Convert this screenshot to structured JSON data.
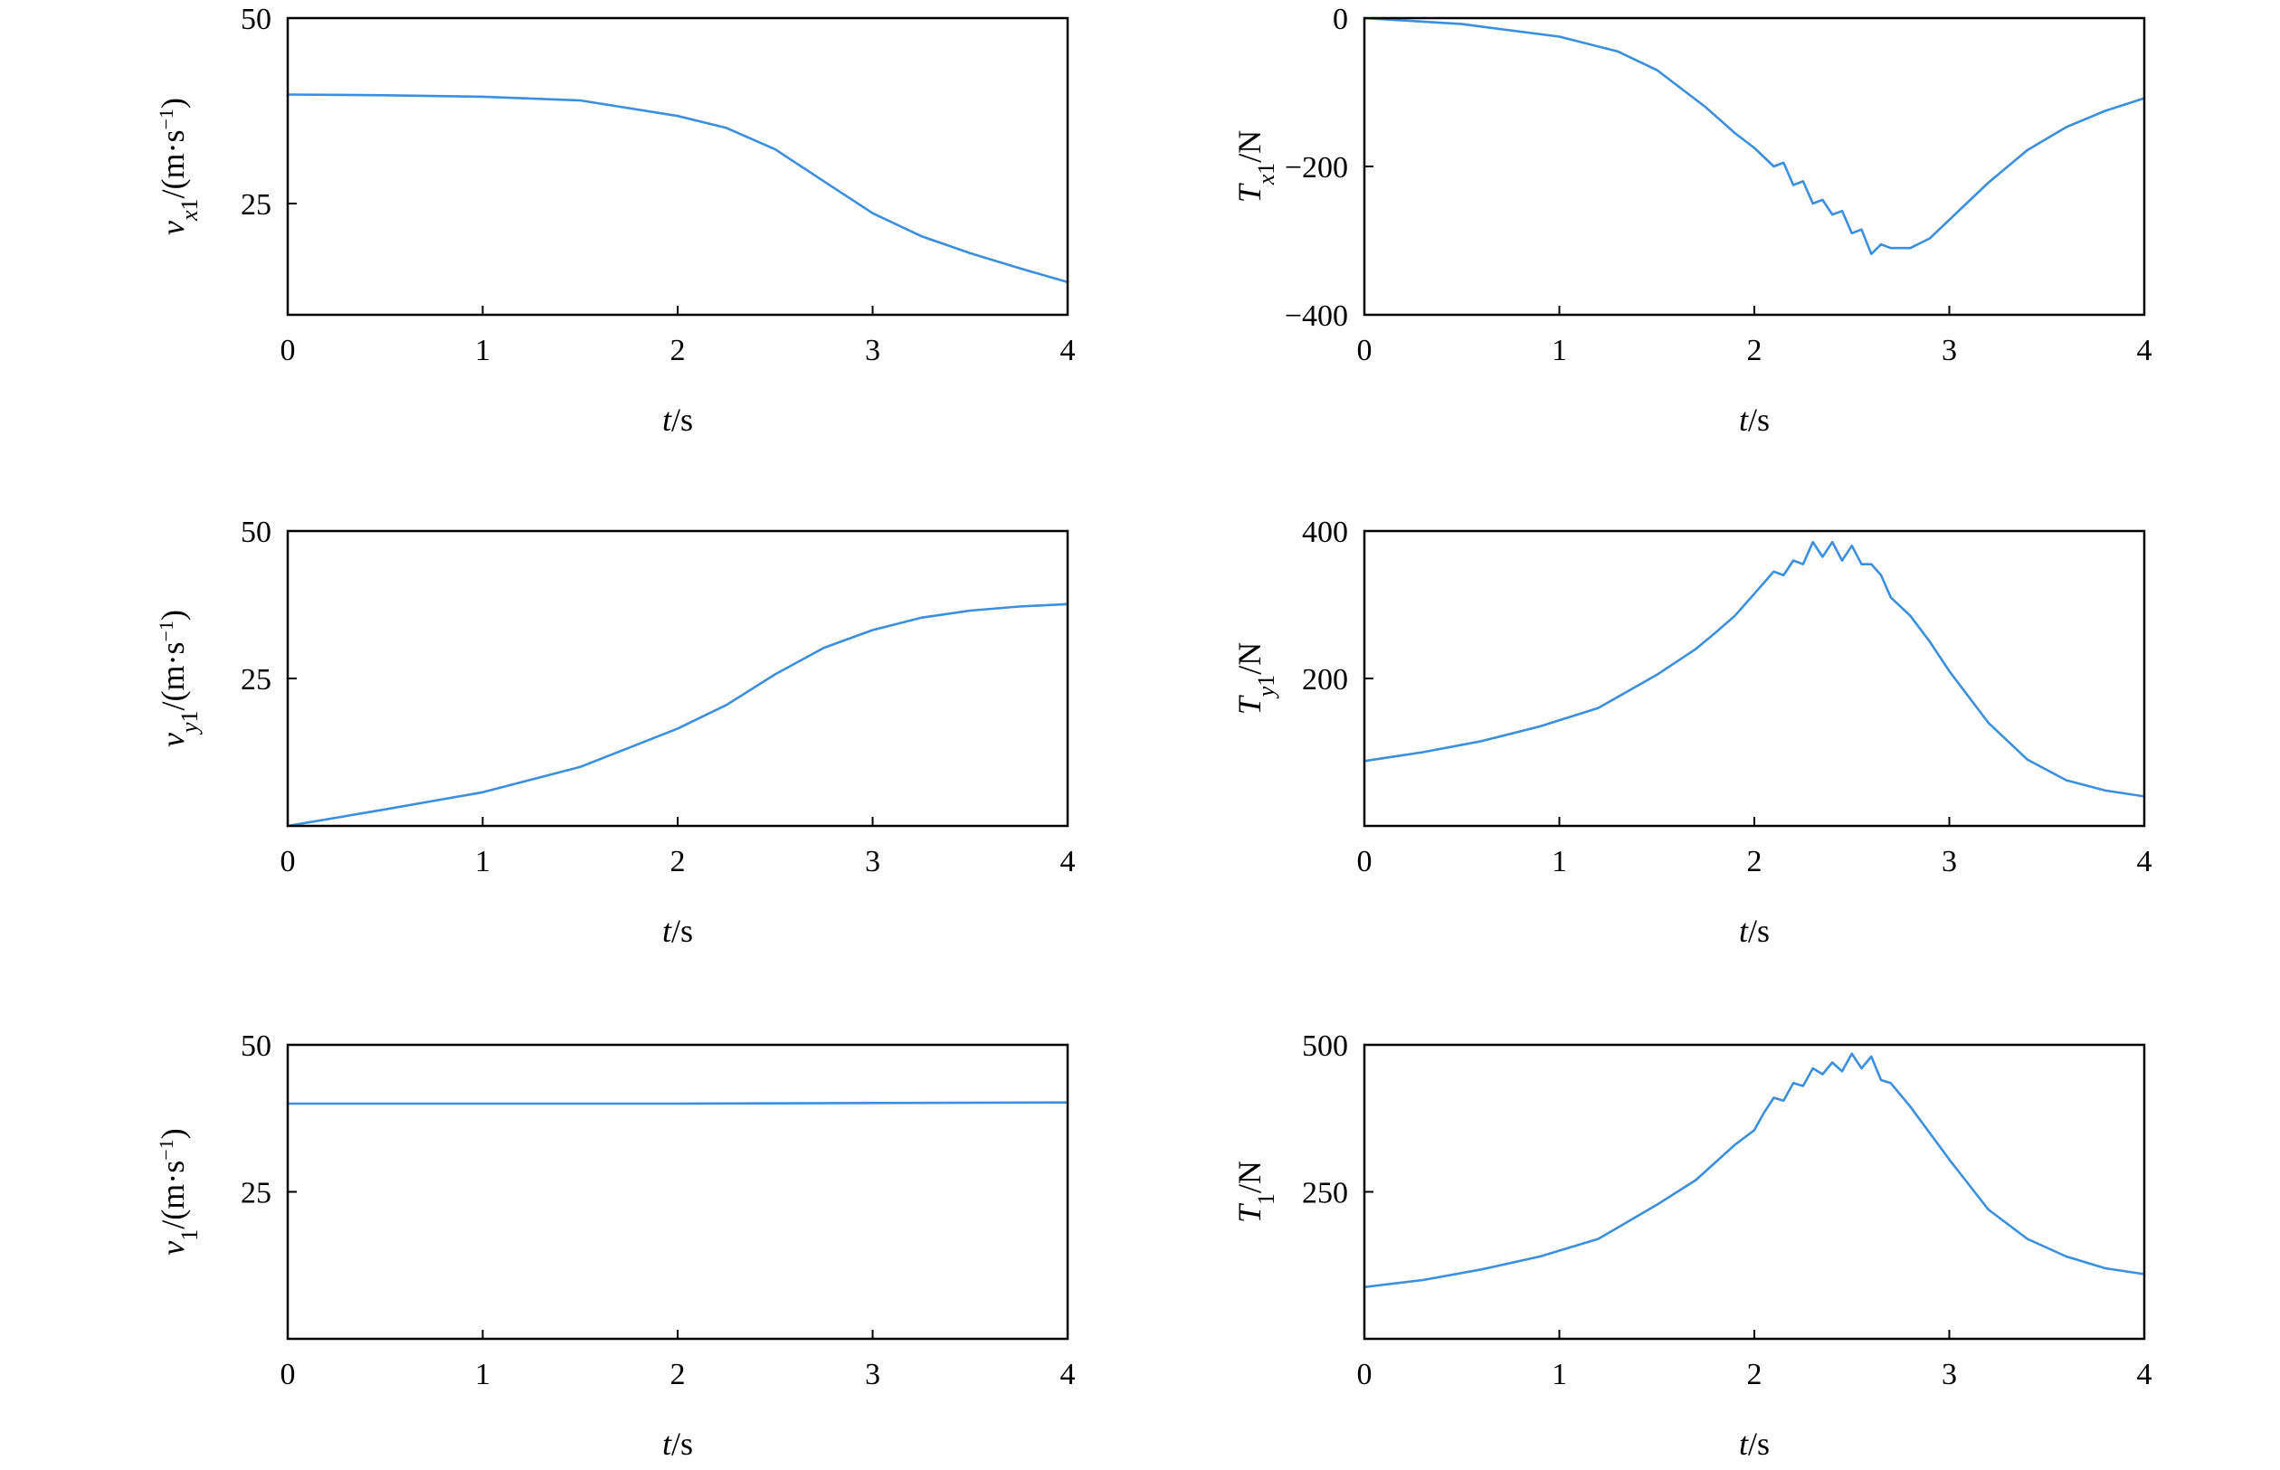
{
  "colors": {
    "series": "#3a8fde",
    "axis": "#000000"
  },
  "chart_data": [
    {
      "id": "vx1",
      "type": "line",
      "ylabel_parts": [
        {
          "t": "v",
          "style": "it"
        },
        {
          "t": "x",
          "style": "it-sub"
        },
        {
          "t": "1",
          "style": "sub"
        },
        {
          "t": "/(m·s",
          "style": "n"
        },
        {
          "t": "−1",
          "style": "sup"
        },
        {
          "t": ")",
          "style": "n"
        }
      ],
      "xlabel_parts": [
        {
          "t": "t",
          "style": "it"
        },
        {
          "t": "/s",
          "style": "n"
        }
      ],
      "xlim": [
        0,
        4
      ],
      "ylim": [
        10,
        50
      ],
      "xticks": [
        "0",
        "1",
        "2",
        "3",
        "4"
      ],
      "xtick_values": [
        0,
        1,
        2,
        3,
        4
      ],
      "yticks": [
        "25",
        "50"
      ],
      "ytick_values": [
        25,
        50
      ],
      "grid": false,
      "series": [
        {
          "x": [
            0,
            0.5,
            1,
            1.5,
            2,
            2.25,
            2.5,
            2.75,
            3,
            3.25,
            3.5,
            3.75,
            4
          ],
          "y": [
            39.7,
            39.6,
            39.4,
            38.9,
            36.8,
            35.2,
            32.3,
            28.0,
            23.7,
            20.6,
            18.3,
            16.3,
            14.4
          ]
        }
      ]
    },
    {
      "id": "Tx1",
      "type": "line",
      "ylabel_parts": [
        {
          "t": "T",
          "style": "it"
        },
        {
          "t": "x",
          "style": "it-sub"
        },
        {
          "t": "1",
          "style": "sub"
        },
        {
          "t": "/N",
          "style": "n"
        }
      ],
      "xlabel_parts": [
        {
          "t": "t",
          "style": "it"
        },
        {
          "t": "/s",
          "style": "n"
        }
      ],
      "xlim": [
        0,
        4
      ],
      "ylim": [
        -400,
        0
      ],
      "xticks": [
        "0",
        "1",
        "2",
        "3",
        "4"
      ],
      "xtick_values": [
        0,
        1,
        2,
        3,
        4
      ],
      "yticks": [
        "0",
        "−200",
        "−400"
      ],
      "ytick_values": [
        0,
        -200,
        -400
      ],
      "grid": false,
      "series": [
        {
          "x": [
            0,
            0.5,
            1,
            1.3,
            1.5,
            1.75,
            1.9,
            2.0,
            2.1,
            2.15,
            2.2,
            2.25,
            2.3,
            2.35,
            2.4,
            2.45,
            2.5,
            2.55,
            2.6,
            2.65,
            2.7,
            2.8,
            2.9,
            3.0,
            3.2,
            3.4,
            3.6,
            3.8,
            4.0
          ],
          "y": [
            0,
            -8,
            -25,
            -45,
            -70,
            -120,
            -155,
            -175,
            -200,
            -195,
            -225,
            -220,
            -250,
            -245,
            -265,
            -260,
            -290,
            -285,
            -318,
            -305,
            -310,
            -310,
            -297,
            -272,
            -222,
            -178,
            -147,
            -125,
            -108
          ]
        }
      ]
    },
    {
      "id": "vy1",
      "type": "line",
      "ylabel_parts": [
        {
          "t": "v",
          "style": "it"
        },
        {
          "t": "y",
          "style": "it-sub"
        },
        {
          "t": "1",
          "style": "sub"
        },
        {
          "t": "/(m·s",
          "style": "n"
        },
        {
          "t": "−1",
          "style": "sup"
        },
        {
          "t": ")",
          "style": "n"
        }
      ],
      "xlabel_parts": [
        {
          "t": "t",
          "style": "it"
        },
        {
          "t": "/s",
          "style": "n"
        }
      ],
      "xlim": [
        0,
        4
      ],
      "ylim": [
        0,
        50
      ],
      "xticks": [
        "0",
        "1",
        "2",
        "3",
        "4"
      ],
      "xtick_values": [
        0,
        1,
        2,
        3,
        4
      ],
      "yticks": [
        "25",
        "50"
      ],
      "ytick_values": [
        25,
        50
      ],
      "grid": false,
      "series": [
        {
          "x": [
            0,
            0.5,
            1,
            1.5,
            2,
            2.25,
            2.5,
            2.75,
            3,
            3.25,
            3.5,
            3.75,
            4
          ],
          "y": [
            0,
            2.8,
            5.7,
            10.0,
            16.5,
            20.5,
            25.7,
            30.2,
            33.2,
            35.3,
            36.5,
            37.2,
            37.6
          ]
        }
      ]
    },
    {
      "id": "Ty1",
      "type": "line",
      "ylabel_parts": [
        {
          "t": "T",
          "style": "it"
        },
        {
          "t": "y",
          "style": "it-sub"
        },
        {
          "t": "1",
          "style": "sub"
        },
        {
          "t": "/N",
          "style": "n"
        }
      ],
      "xlabel_parts": [
        {
          "t": "t",
          "style": "it"
        },
        {
          "t": "/s",
          "style": "n"
        }
      ],
      "xlim": [
        0,
        4
      ],
      "ylim": [
        0,
        400
      ],
      "xticks": [
        "0",
        "1",
        "2",
        "3",
        "4"
      ],
      "xtick_values": [
        0,
        1,
        2,
        3,
        4
      ],
      "yticks": [
        "200",
        "400"
      ],
      "ytick_values": [
        200,
        400
      ],
      "grid": false,
      "series": [
        {
          "x": [
            0,
            0.3,
            0.6,
            0.9,
            1.2,
            1.5,
            1.7,
            1.8,
            1.9,
            2.0,
            2.05,
            2.1,
            2.15,
            2.2,
            2.25,
            2.3,
            2.35,
            2.4,
            2.45,
            2.5,
            2.55,
            2.6,
            2.65,
            2.7,
            2.8,
            2.9,
            3.0,
            3.2,
            3.4,
            3.6,
            3.8,
            4.0
          ],
          "y": [
            88,
            100,
            115,
            135,
            160,
            205,
            240,
            262,
            285,
            315,
            330,
            345,
            340,
            360,
            355,
            385,
            365,
            385,
            360,
            380,
            355,
            355,
            340,
            310,
            285,
            250,
            210,
            140,
            90,
            62,
            48,
            40
          ]
        }
      ]
    },
    {
      "id": "v1",
      "type": "line",
      "ylabel_parts": [
        {
          "t": "v",
          "style": "it"
        },
        {
          "t": "1",
          "style": "sub"
        },
        {
          "t": "/(m·s",
          "style": "n"
        },
        {
          "t": "−1",
          "style": "sup"
        },
        {
          "t": ")",
          "style": "n"
        }
      ],
      "xlabel_parts": [
        {
          "t": "t",
          "style": "it"
        },
        {
          "t": "/s",
          "style": "n"
        }
      ],
      "xlim": [
        0,
        4
      ],
      "ylim": [
        0,
        50
      ],
      "xticks": [
        "0",
        "1",
        "2",
        "3",
        "4"
      ],
      "xtick_values": [
        0,
        1,
        2,
        3,
        4
      ],
      "yticks": [
        "25",
        "50"
      ],
      "ytick_values": [
        25,
        50
      ],
      "grid": false,
      "series": [
        {
          "x": [
            0,
            1,
            2,
            3,
            4
          ],
          "y": [
            40.0,
            40.0,
            40.0,
            40.1,
            40.2
          ]
        }
      ]
    },
    {
      "id": "T1",
      "type": "line",
      "ylabel_parts": [
        {
          "t": "T",
          "style": "it"
        },
        {
          "t": "1",
          "style": "sub"
        },
        {
          "t": "/N",
          "style": "n"
        }
      ],
      "xlabel_parts": [
        {
          "t": "t",
          "style": "it"
        },
        {
          "t": "/s",
          "style": "n"
        }
      ],
      "xlim": [
        0,
        4
      ],
      "ylim": [
        0,
        500
      ],
      "xticks": [
        "0",
        "1",
        "2",
        "3",
        "4"
      ],
      "xtick_values": [
        0,
        1,
        2,
        3,
        4
      ],
      "yticks": [
        "250",
        "500"
      ],
      "ytick_values": [
        250,
        500
      ],
      "grid": false,
      "series": [
        {
          "x": [
            0,
            0.3,
            0.6,
            0.9,
            1.2,
            1.5,
            1.7,
            1.8,
            1.9,
            2.0,
            2.05,
            2.1,
            2.15,
            2.2,
            2.25,
            2.3,
            2.35,
            2.4,
            2.45,
            2.5,
            2.55,
            2.6,
            2.65,
            2.7,
            2.8,
            2.9,
            3.0,
            3.2,
            3.4,
            3.6,
            3.8,
            4.0
          ],
          "y": [
            88,
            100,
            118,
            140,
            170,
            228,
            270,
            300,
            330,
            355,
            385,
            410,
            405,
            435,
            430,
            460,
            450,
            470,
            455,
            485,
            460,
            480,
            440,
            435,
            395,
            350,
            305,
            220,
            170,
            140,
            120,
            110
          ]
        }
      ]
    }
  ]
}
